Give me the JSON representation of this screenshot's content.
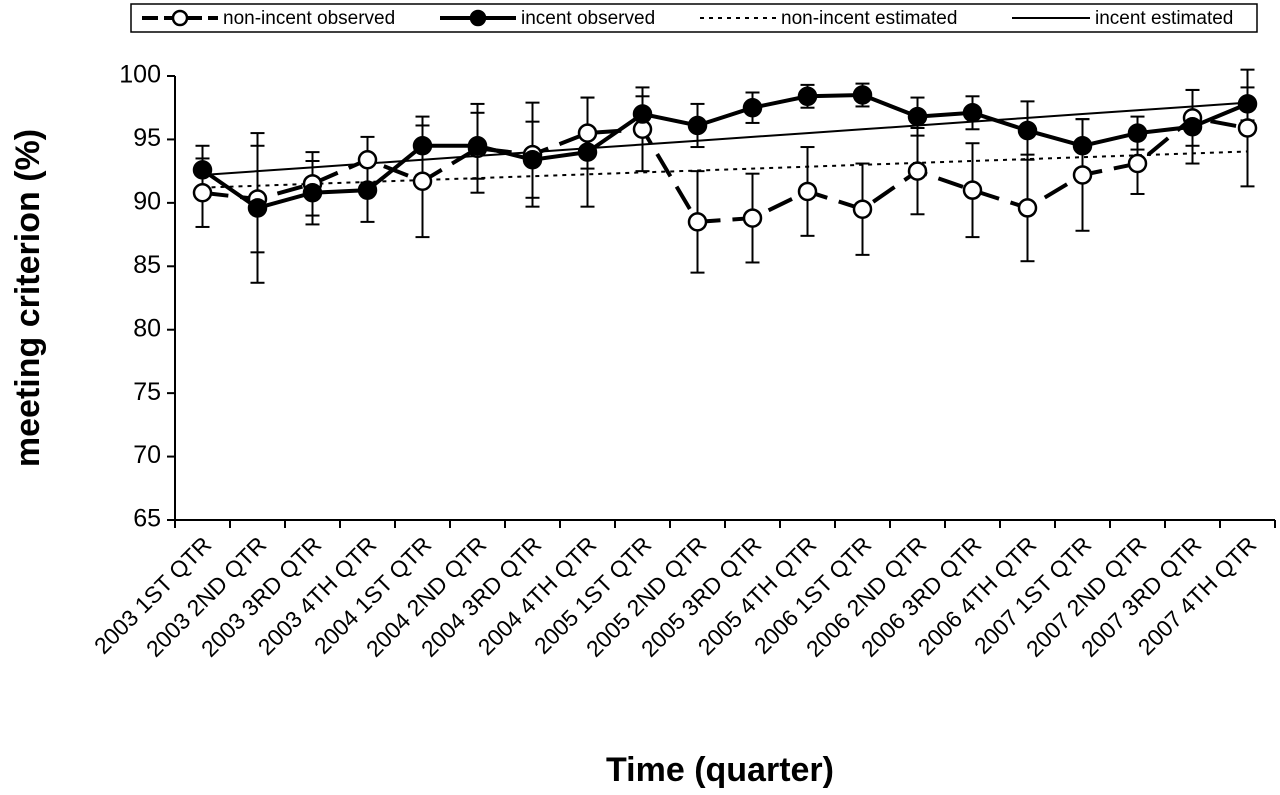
{
  "chart_data": {
    "type": "line",
    "xlabel": "Time (quarter)",
    "ylabel": "meeting criterion (%)",
    "categories": [
      "2003 1ST QTR",
      "2003 2ND QTR",
      "2003 3RD QTR",
      "2003 4TH QTR",
      "2004 1ST QTR",
      "2004 2ND QTR",
      "2004 3RD QTR",
      "2004 4TH QTR",
      "2005 1ST QTR",
      "2005 2ND QTR",
      "2005 3RD QTR",
      "2005 4TH QTR",
      "2006 1ST QTR",
      "2006 2ND QTR",
      "2006 3RD QTR",
      "2006 4TH QTR",
      "2007 1ST QTR",
      "2007 2ND QTR",
      "2007 3RD QTR",
      "2007 4TH QTR"
    ],
    "ylim": [
      65,
      100
    ],
    "yticks": [
      65,
      70,
      75,
      80,
      85,
      90,
      95,
      100
    ],
    "legend": "top",
    "series": [
      {
        "name": "non-incent observed",
        "color": "#000000",
        "line_style": "dashed",
        "marker": "open",
        "values": [
          90.8,
          90.3,
          91.5,
          93.4,
          91.7,
          94.3,
          93.8,
          95.5,
          95.8,
          88.5,
          88.8,
          90.9,
          89.5,
          92.5,
          91.0,
          89.6,
          92.2,
          93.1,
          96.7,
          95.9
        ],
        "errors": [
          2.7,
          4.2,
          2.5,
          1.8,
          4.4,
          3.5,
          4.1,
          2.8,
          3.3,
          4.0,
          3.5,
          3.5,
          3.6,
          3.4,
          3.7,
          4.2,
          4.4,
          2.4,
          2.2,
          4.6
        ]
      },
      {
        "name": "incent observed",
        "color": "#000000",
        "line_style": "solid",
        "marker": "filled",
        "values": [
          92.6,
          89.6,
          90.8,
          91.0,
          94.5,
          94.5,
          93.4,
          94.0,
          97.0,
          96.1,
          97.5,
          98.4,
          98.5,
          96.8,
          97.1,
          95.7,
          94.5,
          95.5,
          96.0,
          97.8
        ],
        "errors": [
          1.9,
          5.9,
          2.5,
          2.5,
          2.3,
          2.6,
          3.0,
          4.3,
          1.4,
          1.7,
          1.2,
          0.9,
          0.9,
          1.5,
          1.3,
          2.3,
          2.1,
          1.3,
          2.9,
          1.3
        ]
      },
      {
        "name": "non-incent estimated",
        "color": "#000000",
        "line_style": "dotted",
        "marker": "none",
        "values": [
          91.2,
          91.35,
          91.5,
          91.65,
          91.8,
          91.95,
          92.1,
          92.25,
          92.4,
          92.55,
          92.7,
          92.85,
          93.0,
          93.15,
          93.3,
          93.45,
          93.6,
          93.75,
          93.9,
          94.05
        ]
      },
      {
        "name": "incent estimated",
        "color": "#000000",
        "line_style": "thin",
        "marker": "none",
        "values": [
          92.2,
          92.5,
          92.8,
          93.1,
          93.4,
          93.7,
          94.0,
          94.3,
          94.6,
          94.9,
          95.2,
          95.5,
          95.8,
          96.1,
          96.4,
          96.7,
          97.0,
          97.3,
          97.6,
          97.9
        ]
      }
    ]
  }
}
